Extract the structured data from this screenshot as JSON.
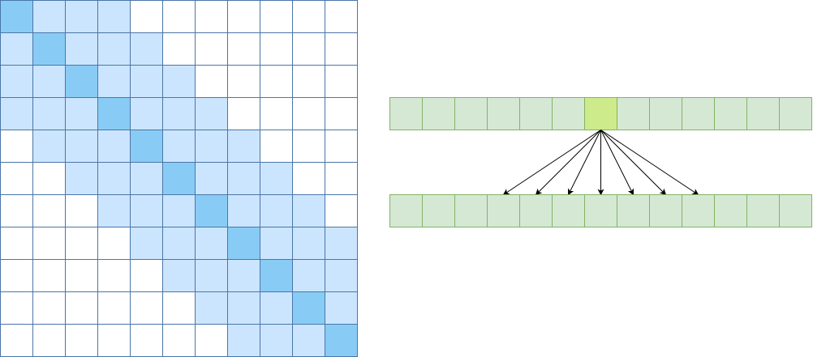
{
  "attention_matrix": {
    "size": 11,
    "window_radius": 3,
    "colors": {
      "diagonal": "#88CCF6",
      "band": "#CCE5FF",
      "empty": "#FFFFFF",
      "grid_line": "#4A76A8"
    }
  },
  "sequences": {
    "length": 13,
    "query_index": 6,
    "attended_range": [
      3,
      9
    ],
    "colors": {
      "token_fill": "#D5E8D4",
      "token_stroke": "#82B366",
      "query_fill": "#CDEB8B",
      "arrow": "#000000"
    }
  }
}
